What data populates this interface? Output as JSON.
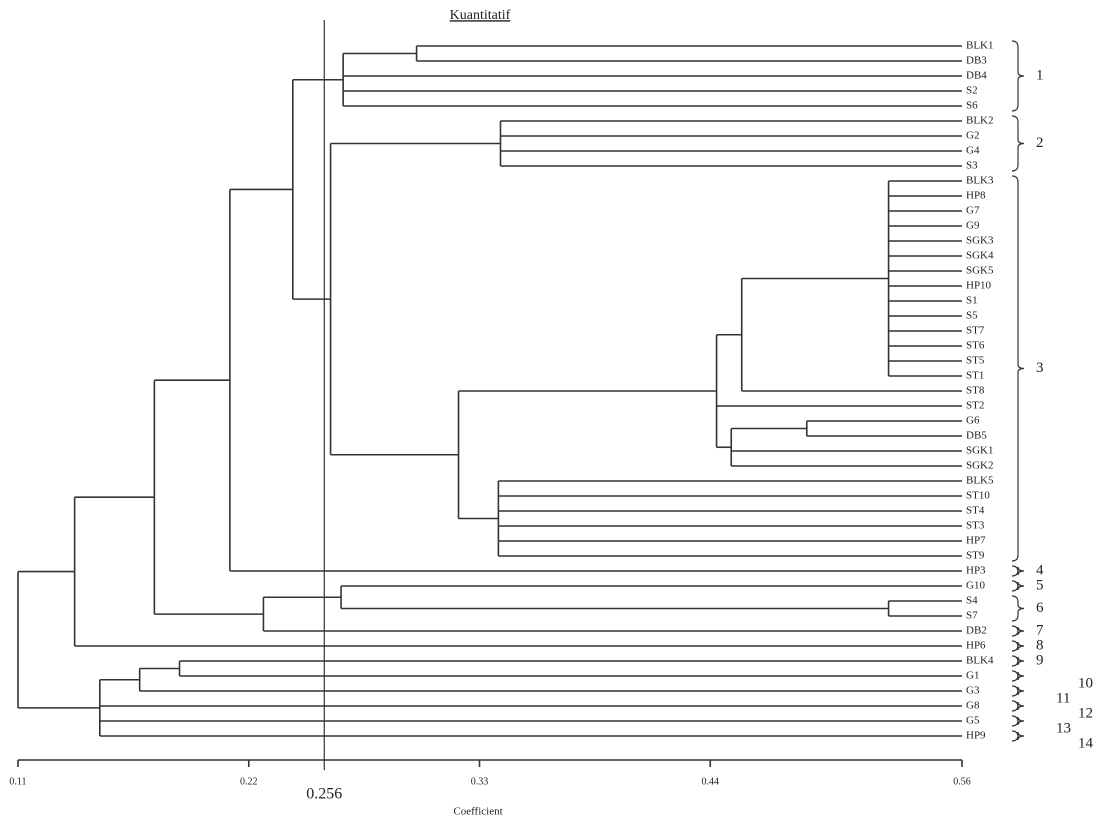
{
  "chart_data": {
    "type": "dendrogram",
    "title": "Kuantitatif",
    "x_label": "Coefficient",
    "xlim": [
      0.11,
      0.56
    ],
    "xticks": [
      0.11,
      0.22,
      0.33,
      0.44,
      0.56
    ],
    "cut_value": 0.256,
    "leaves": [
      "BLK1",
      "DB3",
      "DB4",
      "S2",
      "S6",
      "BLK2",
      "G2",
      "G4",
      "S3",
      "BLK3",
      "HP8",
      "G7",
      "G9",
      "SGK3",
      "SGK4",
      "SGK5",
      "HP10",
      "S1",
      "S5",
      "ST7",
      "ST6",
      "ST5",
      "ST1",
      "ST8",
      "ST2",
      "G6",
      "DB5",
      "SGK1",
      "SGK2",
      "BLK5",
      "ST10",
      "ST4",
      "ST3",
      "HP7",
      "ST9",
      "HP3",
      "G10",
      "S4",
      "S7",
      "DB2",
      "HP6",
      "BLK4",
      "G1",
      "G3",
      "G8",
      "G5",
      "HP9"
    ],
    "merges": [
      {
        "children": [
          0,
          1
        ],
        "height": 0.3
      },
      {
        "children": [
          47,
          2,
          3,
          4
        ],
        "height": 0.265
      },
      {
        "children": [
          5,
          6,
          7,
          8
        ],
        "height": 0.34
      },
      {
        "children": [
          9,
          10,
          11,
          12,
          13,
          14,
          15,
          16,
          17,
          18,
          19,
          20,
          21,
          22
        ],
        "height": 0.525
      },
      {
        "children": [
          50,
          23
        ],
        "height": 0.455
      },
      {
        "children": [
          25,
          26
        ],
        "height": 0.486
      },
      {
        "children": [
          52,
          27,
          28
        ],
        "height": 0.45
      },
      {
        "children": [
          51,
          24,
          53
        ],
        "height": 0.443
      },
      {
        "children": [
          29,
          30,
          31,
          32,
          33,
          34
        ],
        "height": 0.339
      },
      {
        "children": [
          54,
          55
        ],
        "height": 0.32
      },
      {
        "children": [
          49,
          56
        ],
        "height": 0.259
      },
      {
        "children": [
          48,
          57
        ],
        "height": 0.241
      },
      {
        "children": [
          58,
          35
        ],
        "height": 0.211
      },
      {
        "children": [
          37,
          38
        ],
        "height": 0.525
      },
      {
        "children": [
          36,
          60
        ],
        "height": 0.264
      },
      {
        "children": [
          61,
          39
        ],
        "height": 0.227
      },
      {
        "children": [
          59,
          62
        ],
        "height": 0.175
      },
      {
        "children": [
          63,
          40
        ],
        "height": 0.137
      },
      {
        "children": [
          41,
          42
        ],
        "height": 0.187
      },
      {
        "children": [
          65,
          43
        ],
        "height": 0.168
      },
      {
        "children": [
          66,
          44,
          45,
          46
        ],
        "height": 0.149
      },
      {
        "children": [
          64,
          67
        ],
        "height": 0.11
      }
    ],
    "clusters": [
      {
        "label": "1",
        "leaves": [
          0,
          4
        ]
      },
      {
        "label": "2",
        "leaves": [
          5,
          8
        ]
      },
      {
        "label": "3",
        "leaves": [
          9,
          34
        ]
      },
      {
        "label": "4",
        "leaves": [
          35,
          35
        ]
      },
      {
        "label": "5",
        "leaves": [
          36,
          36
        ]
      },
      {
        "label": "6",
        "leaves": [
          37,
          38
        ]
      },
      {
        "label": "7",
        "leaves": [
          39,
          39
        ]
      },
      {
        "label": "8",
        "leaves": [
          40,
          40
        ]
      },
      {
        "label": "9",
        "leaves": [
          41,
          41
        ]
      },
      {
        "label": "10",
        "leaves": [
          42,
          42
        ]
      },
      {
        "label": "11",
        "leaves": [
          43,
          43
        ]
      },
      {
        "label": "12",
        "leaves": [
          44,
          44
        ]
      },
      {
        "label": "13",
        "leaves": [
          45,
          45
        ]
      },
      {
        "label": "14",
        "leaves": [
          46,
          46
        ]
      }
    ]
  }
}
